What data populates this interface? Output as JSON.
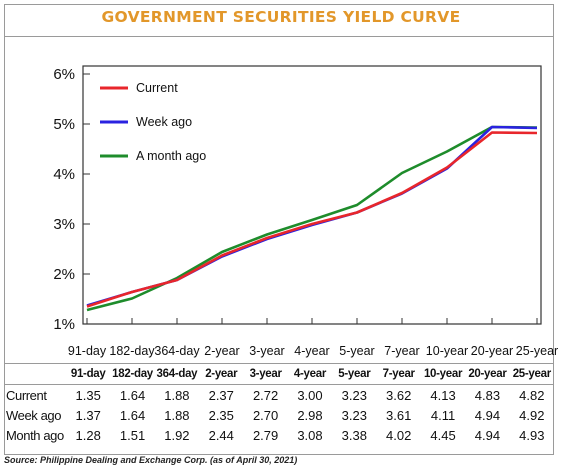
{
  "title": "GOVERNMENT SECURITIES YIELD CURVE",
  "source": "Source: Philippine Dealing and Exchange Corp. (as of April 30, 2021)",
  "chart_data": {
    "type": "line",
    "categories": [
      "91-day",
      "182-day",
      "364-day",
      "2-year",
      "3-year",
      "4-year",
      "5-year",
      "7-year",
      "10-year",
      "20-year",
      "25-year"
    ],
    "y_ticks": [
      "1%",
      "2%",
      "3%",
      "4%",
      "5%",
      "6%"
    ],
    "ylim": [
      1,
      6
    ],
    "grid": false,
    "legend_position": "top-left",
    "series": [
      {
        "name": "Current",
        "color": "#e8262b",
        "values": [
          1.35,
          1.64,
          1.88,
          2.37,
          2.72,
          3.0,
          3.23,
          3.62,
          4.13,
          4.83,
          4.82
        ]
      },
      {
        "name": "Week ago",
        "color": "#2a22e0",
        "values": [
          1.37,
          1.64,
          1.88,
          2.35,
          2.7,
          2.98,
          3.23,
          3.61,
          4.11,
          4.94,
          4.92
        ]
      },
      {
        "name": "A month ago",
        "color": "#1e8c2b",
        "values": [
          1.28,
          1.51,
          1.92,
          2.44,
          2.79,
          3.08,
          3.38,
          4.02,
          4.45,
          4.94,
          4.93
        ]
      }
    ]
  },
  "table": {
    "headers": [
      "91-day",
      "182-day",
      "364-day",
      "2-year",
      "3-year",
      "4-year",
      "5-year",
      "7-year",
      "10-year",
      "20-year",
      "25-year"
    ],
    "rows": [
      {
        "label": "Current",
        "values": [
          "1.35",
          "1.64",
          "1.88",
          "2.37",
          "2.72",
          "3.00",
          "3.23",
          "3.62",
          "4.13",
          "4.83",
          "4.82"
        ]
      },
      {
        "label": "Week ago",
        "values": [
          "1.37",
          "1.64",
          "1.88",
          "2.35",
          "2.70",
          "2.98",
          "3.23",
          "3.61",
          "4.11",
          "4.94",
          "4.92"
        ]
      },
      {
        "label": "Month ago",
        "values": [
          "1.28",
          "1.51",
          "1.92",
          "2.44",
          "2.79",
          "3.08",
          "3.38",
          "4.02",
          "4.45",
          "4.94",
          "4.93"
        ]
      }
    ]
  }
}
